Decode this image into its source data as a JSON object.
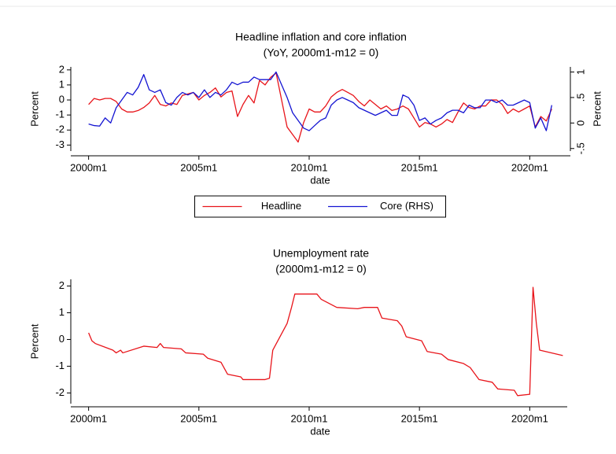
{
  "chart_data": [
    {
      "type": "line",
      "title": "Headline inflation and core inflation",
      "subtitle": "(YoY, 2000m1-m12 = 0)",
      "xlabel": "date",
      "ylabel": "Percent",
      "y2label": "Percent",
      "x": [
        2000,
        2000.25,
        2000.5,
        2000.75,
        2001,
        2001.25,
        2001.5,
        2001.75,
        2002,
        2002.25,
        2002.5,
        2002.75,
        2003,
        2003.25,
        2003.5,
        2003.75,
        2004,
        2004.25,
        2004.5,
        2004.75,
        2005,
        2005.25,
        2005.5,
        2005.75,
        2006,
        2006.25,
        2006.5,
        2006.75,
        2007,
        2007.25,
        2007.5,
        2007.75,
        2008,
        2008.25,
        2008.5,
        2008.75,
        2009,
        2009.25,
        2009.5,
        2009.75,
        2010,
        2010.25,
        2010.5,
        2010.75,
        2011,
        2011.25,
        2011.5,
        2011.75,
        2012,
        2012.25,
        2012.5,
        2012.75,
        2013,
        2013.25,
        2013.5,
        2013.75,
        2014,
        2014.25,
        2014.5,
        2014.75,
        2015,
        2015.25,
        2015.5,
        2015.75,
        2016,
        2016.25,
        2016.5,
        2016.75,
        2017,
        2017.25,
        2017.5,
        2017.75,
        2018,
        2018.25,
        2018.5,
        2018.75,
        2019,
        2019.25,
        2019.5,
        2019.75,
        2020,
        2020.25,
        2020.5,
        2020.75,
        2021
      ],
      "xlim": [
        1999.3,
        2021.7
      ],
      "xticks": [
        {
          "value": 2000,
          "label": "2000m1"
        },
        {
          "value": 2005,
          "label": "2005m1"
        },
        {
          "value": 2010,
          "label": "2010m1"
        },
        {
          "value": 2015,
          "label": "2015m1"
        },
        {
          "value": 2020,
          "label": "2020m1"
        }
      ],
      "ylim": [
        -3.4,
        2.2
      ],
      "yticks": [
        2,
        1,
        0,
        -1,
        -2,
        -3
      ],
      "y2lim": [
        -0.55,
        1.1
      ],
      "y2ticks": [
        1,
        {
          "value": 0.5,
          "label": ".5"
        },
        0,
        {
          "value": -0.5,
          "label": "-.5"
        }
      ],
      "grid": false,
      "legend": "bottom",
      "series": [
        {
          "name": "Headline",
          "color": "#e8141a",
          "values": [
            -0.3,
            0.1,
            0.0,
            0.1,
            0.1,
            -0.1,
            -0.6,
            -0.8,
            -0.8,
            -0.7,
            -0.5,
            -0.2,
            0.3,
            -0.3,
            -0.4,
            -0.2,
            -0.3,
            0.3,
            0.4,
            0.5,
            0.0,
            0.3,
            0.5,
            0.8,
            0.2,
            0.5,
            0.6,
            -1.1,
            -0.3,
            0.3,
            -0.2,
            1.3,
            1.0,
            1.5,
            1.8,
            0.0,
            -1.8,
            -2.3,
            -2.8,
            -1.5,
            -0.6,
            -0.8,
            -0.8,
            -0.4,
            0.2,
            0.5,
            0.7,
            0.5,
            0.3,
            -0.1,
            -0.4,
            0.0,
            -0.3,
            -0.6,
            -0.4,
            -0.7,
            -0.6,
            -0.4,
            -0.6,
            -1.2,
            -1.8,
            -1.5,
            -1.6,
            -1.8,
            -1.6,
            -1.3,
            -1.5,
            -0.8,
            -0.2,
            -0.5,
            -0.6,
            -0.4,
            -0.4,
            0.0,
            0.0,
            -0.3,
            -0.9,
            -0.6,
            -0.8,
            -0.6,
            -0.4,
            -1.8,
            -1.1,
            -1.4,
            -0.6
          ]
        },
        {
          "name": "Core (RHS)",
          "color": "#1414d2",
          "axis": "y2",
          "values": [
            -0.02,
            -0.05,
            -0.06,
            0.1,
            0.0,
            0.3,
            0.45,
            0.6,
            0.55,
            0.7,
            0.95,
            0.65,
            0.6,
            0.65,
            0.4,
            0.35,
            0.5,
            0.6,
            0.55,
            0.6,
            0.5,
            0.65,
            0.5,
            0.6,
            0.55,
            0.65,
            0.8,
            0.75,
            0.8,
            0.8,
            0.9,
            0.85,
            0.85,
            0.85,
            1.0,
            0.75,
            0.5,
            0.2,
            0.05,
            -0.1,
            -0.15,
            -0.05,
            0.05,
            0.1,
            0.35,
            0.45,
            0.5,
            0.45,
            0.4,
            0.3,
            0.25,
            0.2,
            0.15,
            0.2,
            0.25,
            0.15,
            0.15,
            0.55,
            0.5,
            0.35,
            0.05,
            0.1,
            -0.02,
            0.05,
            0.1,
            0.2,
            0.25,
            0.25,
            0.2,
            0.35,
            0.3,
            0.3,
            0.45,
            0.45,
            0.4,
            0.45,
            0.35,
            0.35,
            0.4,
            0.45,
            0.4,
            -0.1,
            0.1,
            -0.15,
            0.35
          ]
        }
      ]
    },
    {
      "type": "line",
      "title": "Unemployment rate",
      "subtitle": "(2000m1-m12 = 0)",
      "xlabel": "date",
      "ylabel": "Percent",
      "x": [
        2000,
        2000.15,
        2000.3,
        2001.1,
        2001.25,
        2001.45,
        2001.55,
        2002.5,
        2003.1,
        2003.25,
        2003.4,
        2004.2,
        2004.4,
        2005.2,
        2005.4,
        2006,
        2006.3,
        2006.9,
        2007,
        2008,
        2008.2,
        2008.35,
        2009,
        2009.2,
        2009.35,
        2010.35,
        2010.55,
        2011.25,
        2012.2,
        2012.5,
        2013.1,
        2013.3,
        2014,
        2014.2,
        2014.4,
        2015.1,
        2015.35,
        2016,
        2016.3,
        2017,
        2017.3,
        2017.7,
        2018.3,
        2018.55,
        2019.3,
        2019.45,
        2020,
        2020.15,
        2020.3,
        2020.45,
        2021.5
      ],
      "xlim": [
        1999.3,
        2021.7
      ],
      "xticks": [
        {
          "value": 2000,
          "label": "2000m1"
        },
        {
          "value": 2005,
          "label": "2005m1"
        },
        {
          "value": 2010,
          "label": "2010m1"
        },
        {
          "value": 2015,
          "label": "2015m1"
        },
        {
          "value": 2020,
          "label": "2020m1"
        }
      ],
      "ylim": [
        -2.4,
        2.25
      ],
      "yticks": [
        2,
        1,
        0,
        -1,
        -2
      ],
      "grid": false,
      "series": [
        {
          "color": "#e8141a",
          "values": [
            0.25,
            -0.05,
            -0.15,
            -0.4,
            -0.5,
            -0.4,
            -0.5,
            -0.25,
            -0.3,
            -0.15,
            -0.3,
            -0.35,
            -0.5,
            -0.55,
            -0.7,
            -0.85,
            -1.3,
            -1.4,
            -1.5,
            -1.5,
            -1.45,
            -0.4,
            0.6,
            1.2,
            1.7,
            1.7,
            1.5,
            1.2,
            1.15,
            1.2,
            1.2,
            0.8,
            0.7,
            0.5,
            0.1,
            -0.05,
            -0.45,
            -0.55,
            -0.75,
            -0.9,
            -1.05,
            -1.5,
            -1.6,
            -1.85,
            -1.9,
            -2.1,
            -2.05,
            1.95,
            0.6,
            -0.4,
            -0.6
          ]
        }
      ]
    }
  ]
}
